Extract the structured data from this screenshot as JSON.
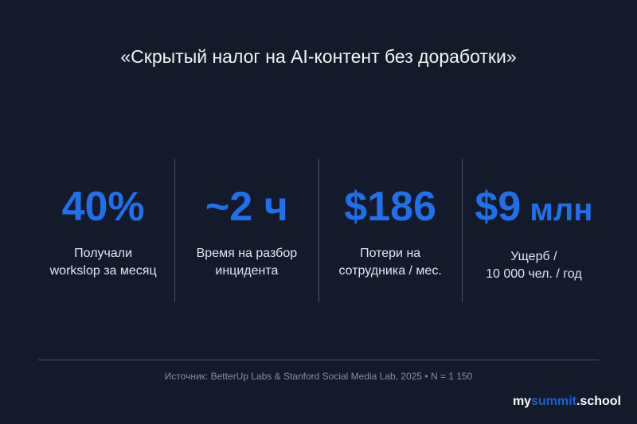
{
  "title": "«Скрытый налог на AI-контент без доработки»",
  "stats": [
    {
      "value": "40%",
      "unit": "",
      "label_line1": "Получали",
      "label_line2": "workslop за месяц"
    },
    {
      "value": "~2 ч",
      "unit": "",
      "label_line1": "Время на разбор",
      "label_line2": "инцидента"
    },
    {
      "value": "$186",
      "unit": "",
      "label_line1": "Потери на",
      "label_line2": "сотрудника / мес."
    },
    {
      "value": "$9",
      "unit": " млн",
      "label_line1": "Ущерб /",
      "label_line2": "10 000 чел. / год"
    }
  ],
  "source": "Источник: BetterUp Labs & Stanford Social Media Lab, 2025 • N = 1 150",
  "logo": {
    "part1": "my",
    "part2": "summit",
    "part3": ".school"
  },
  "colors": {
    "background": "#131a29",
    "accent": "#1f70ea"
  }
}
